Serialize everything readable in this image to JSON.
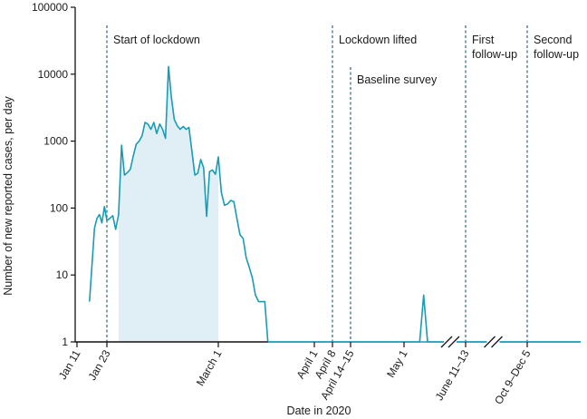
{
  "chart_data": {
    "type": "line",
    "xlabel": "Date in 2020",
    "ylabel": "Number of new reported cases, per day",
    "yscale": "log",
    "ylim": [
      1,
      100000
    ],
    "yticks": [
      {
        "value": 1,
        "label": "1"
      },
      {
        "value": 10,
        "label": "10"
      },
      {
        "value": 100,
        "label": "100"
      },
      {
        "value": 1000,
        "label": "1000"
      },
      {
        "value": 10000,
        "label": "10000"
      },
      {
        "value": 100000,
        "label": "100000"
      }
    ],
    "xtick_labels": [
      "Jan 11",
      "Jan 23",
      "March 1",
      "April 1",
      "April 8",
      "April 14–15",
      "May 1",
      "June 11–13",
      "Oct 9–Dec 5"
    ],
    "events": [
      {
        "date": "Jan 23",
        "lines": [
          "Start of lockdown"
        ]
      },
      {
        "date": "April 8",
        "lines": [
          "Lockdown lifted"
        ]
      },
      {
        "date": "April 14–15",
        "lines": [
          "Baseline survey"
        ]
      },
      {
        "date": "June 11–13",
        "lines": [
          "First",
          "follow-up"
        ]
      },
      {
        "date": "Oct 9–Dec 5",
        "lines": [
          "Second",
          "follow-up"
        ]
      }
    ],
    "shaded_period": {
      "from": "Jan 27",
      "to": "March 1"
    },
    "axis_breaks": [
      "between May and June 11–13",
      "between June 11–13 and Oct 9–Dec 5"
    ],
    "series": [
      {
        "color": "#1a9bb5",
        "points": [
          {
            "x": "Jan 16",
            "y": 4
          },
          {
            "x": "Jan 18",
            "y": 50
          },
          {
            "x": "Jan 19",
            "y": 70
          },
          {
            "x": "Jan 20",
            "y": 80
          },
          {
            "x": "Jan 21",
            "y": 60
          },
          {
            "x": "Jan 22",
            "y": 105
          },
          {
            "x": "Jan 23",
            "y": 65
          },
          {
            "x": "Jan 24",
            "y": 70
          },
          {
            "x": "Jan 25",
            "y": 77
          },
          {
            "x": "Jan 26",
            "y": 48
          },
          {
            "x": "Jan 27",
            "y": 80
          },
          {
            "x": "Jan 28",
            "y": 870
          },
          {
            "x": "Jan 29",
            "y": 310
          },
          {
            "x": "Jan 30",
            "y": 340
          },
          {
            "x": "Jan 31",
            "y": 380
          },
          {
            "x": "Feb 1",
            "y": 600
          },
          {
            "x": "Feb 2",
            "y": 900
          },
          {
            "x": "Feb 3",
            "y": 1000
          },
          {
            "x": "Feb 4",
            "y": 1200
          },
          {
            "x": "Feb 5",
            "y": 1900
          },
          {
            "x": "Feb 6",
            "y": 1800
          },
          {
            "x": "Feb 7",
            "y": 1500
          },
          {
            "x": "Feb 8",
            "y": 1900
          },
          {
            "x": "Feb 9",
            "y": 1300
          },
          {
            "x": "Feb 10",
            "y": 1800
          },
          {
            "x": "Feb 11",
            "y": 1500
          },
          {
            "x": "Feb 12",
            "y": 1100
          },
          {
            "x": "Feb 13",
            "y": 13000
          },
          {
            "x": "Feb 14",
            "y": 4500
          },
          {
            "x": "Feb 15",
            "y": 2100
          },
          {
            "x": "Feb 16",
            "y": 1700
          },
          {
            "x": "Feb 17",
            "y": 1500
          },
          {
            "x": "Feb 18",
            "y": 1650
          },
          {
            "x": "Feb 19",
            "y": 1500
          },
          {
            "x": "Feb 20",
            "y": 1600
          },
          {
            "x": "Feb 21",
            "y": 700
          },
          {
            "x": "Feb 22",
            "y": 310
          },
          {
            "x": "Feb 23",
            "y": 330
          },
          {
            "x": "Feb 24",
            "y": 530
          },
          {
            "x": "Feb 25",
            "y": 400
          },
          {
            "x": "Feb 26",
            "y": 75
          },
          {
            "x": "Feb 27",
            "y": 350
          },
          {
            "x": "Feb 28",
            "y": 370
          },
          {
            "x": "Feb 29",
            "y": 320
          },
          {
            "x": "March 1",
            "y": 580
          },
          {
            "x": "March 2",
            "y": 170
          },
          {
            "x": "March 3",
            "y": 110
          },
          {
            "x": "March 4",
            "y": 115
          },
          {
            "x": "March 5",
            "y": 130
          },
          {
            "x": "March 6",
            "y": 125
          },
          {
            "x": "March 7",
            "y": 70
          },
          {
            "x": "March 8",
            "y": 40
          },
          {
            "x": "March 9",
            "y": 35
          },
          {
            "x": "March 10",
            "y": 18
          },
          {
            "x": "March 11",
            "y": 13
          },
          {
            "x": "March 12",
            "y": 9
          },
          {
            "x": "March 13",
            "y": 5
          },
          {
            "x": "March 14",
            "y": 4
          },
          {
            "x": "March 15",
            "y": 4
          },
          {
            "x": "March 16",
            "y": 4
          },
          {
            "x": "March 17",
            "y": 1
          },
          {
            "x": "April 30",
            "y": 1
          },
          {
            "x": "May 1",
            "y": 1
          },
          {
            "x": "May 4",
            "y": 1
          },
          {
            "x": "May 5",
            "y": 1
          },
          {
            "x": "May 6",
            "y": 5
          },
          {
            "x": "May 7",
            "y": 1
          },
          {
            "x": "Dec 5",
            "y": 1
          }
        ]
      }
    ]
  }
}
